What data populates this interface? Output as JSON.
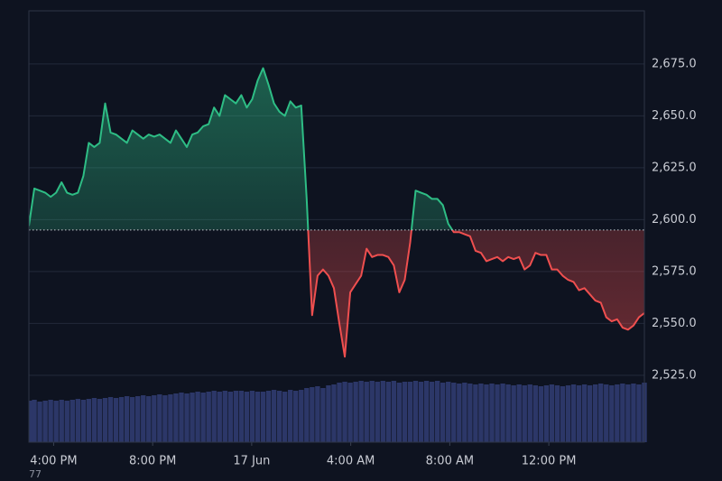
{
  "chart_data": {
    "type": "baseline",
    "annotation": "77",
    "baseline": 2595,
    "colors": {
      "up": "#2ebd85",
      "down": "#ef4f4f",
      "volume": "#2c3768",
      "grid": "#232a3a"
    },
    "xlim": [
      15,
      39.86
    ],
    "xticks": [
      {
        "value": 16,
        "label": "4:00 PM"
      },
      {
        "value": 20,
        "label": "8:00 PM"
      },
      {
        "value": 24,
        "label": "17 Jun"
      },
      {
        "value": 28,
        "label": "4:00 AM"
      },
      {
        "value": 32,
        "label": "8:00 AM"
      },
      {
        "value": 36,
        "label": "12:00 PM"
      }
    ],
    "ylim": [
      2492.8,
      2700.6
    ],
    "yticks": [
      {
        "value": 2525,
        "label": "2,525.0"
      },
      {
        "value": 2550,
        "label": "2,550.0"
      },
      {
        "value": 2575,
        "label": "2,575.0"
      },
      {
        "value": 2600,
        "label": "2,600.0"
      },
      {
        "value": 2625,
        "label": "2,625.0"
      },
      {
        "value": 2650,
        "label": "2,650.0"
      },
      {
        "value": 2675,
        "label": "2,675.0"
      }
    ],
    "grid": true,
    "x": [
      15,
      15.22,
      15.44,
      15.66,
      15.88,
      16.1,
      16.32,
      16.54,
      16.76,
      16.98,
      17.2,
      17.42,
      17.64,
      17.86,
      18.08,
      18.3,
      18.52,
      18.74,
      18.96,
      19.18,
      19.4,
      19.62,
      19.84,
      20.06,
      20.28,
      20.5,
      20.72,
      20.94,
      21.16,
      21.38,
      21.6,
      21.82,
      22.04,
      22.26,
      22.48,
      22.7,
      22.92,
      23.14,
      23.36,
      23.58,
      23.8,
      24.02,
      24.24,
      24.46,
      24.68,
      24.9,
      25.12,
      25.34,
      25.56,
      25.78,
      26,
      26.22,
      26.44,
      26.66,
      26.88,
      27.1,
      27.32,
      27.54,
      27.76,
      27.98,
      28.2,
      28.42,
      28.64,
      28.86,
      29.08,
      29.3,
      29.52,
      29.74,
      29.96,
      30.18,
      30.4,
      30.62,
      30.84,
      31.06,
      31.28,
      31.5,
      31.72,
      31.94,
      32.16,
      32.38,
      32.6,
      32.82,
      33.04,
      33.26,
      33.48,
      33.7,
      33.92,
      34.14,
      34.36,
      34.58,
      34.8,
      35.02,
      35.24,
      35.46,
      35.68,
      35.9,
      36.12,
      36.34,
      36.56,
      36.78,
      37,
      37.22,
      37.44,
      37.66,
      37.88,
      38.1,
      38.32,
      38.54,
      38.76,
      38.98,
      39.2,
      39.42,
      39.64,
      39.86
    ],
    "values": [
      2597,
      2615,
      2614,
      2613,
      2611,
      2613,
      2618,
      2613,
      2612,
      2613,
      2621,
      2637,
      2635,
      2637,
      2656,
      2642,
      2641,
      2639,
      2637,
      2643,
      2641,
      2639,
      2641,
      2640,
      2641,
      2639,
      2637,
      2643,
      2639,
      2635,
      2641,
      2642,
      2645,
      2646,
      2654,
      2650,
      2660,
      2658,
      2656,
      2660,
      2654,
      2658,
      2667,
      2673,
      2665,
      2656,
      2652,
      2650,
      2657,
      2654,
      2655,
      2610,
      2554,
      2573,
      2576,
      2573,
      2567,
      2550,
      2534,
      2565,
      2569,
      2573,
      2586,
      2582,
      2583,
      2583,
      2582,
      2578,
      2565,
      2571,
      2589,
      2614,
      2613,
      2612,
      2610,
      2610,
      2607,
      2598,
      2594,
      2594,
      2593,
      2592,
      2585,
      2584,
      2580,
      2581,
      2582,
      2580,
      2582,
      2581,
      2582,
      2576,
      2578,
      2584,
      2583,
      2583,
      2576,
      2576,
      2573,
      2571,
      2570,
      2566,
      2567,
      2564,
      2561,
      2560,
      2553,
      2551,
      2552,
      2548,
      2547,
      2549,
      2553,
      2555
    ],
    "volume": [
      46,
      47,
      45,
      46,
      47,
      46,
      47,
      46,
      47,
      48,
      47,
      48,
      49,
      48,
      49,
      50,
      49,
      50,
      51,
      50,
      51,
      52,
      51,
      52,
      53,
      52,
      53,
      54,
      55,
      54,
      55,
      56,
      55,
      56,
      57,
      56,
      57,
      56,
      57,
      57,
      56,
      57,
      56,
      56,
      57,
      58,
      57,
      56,
      58,
      57,
      58,
      60,
      61,
      62,
      60,
      63,
      64,
      66,
      67,
      66,
      67,
      68,
      67,
      68,
      67,
      68,
      67,
      68,
      66,
      67,
      67,
      68,
      67,
      68,
      67,
      68,
      66,
      67,
      66,
      65,
      66,
      65,
      64,
      65,
      64,
      65,
      64,
      65,
      64,
      63,
      64,
      63,
      64,
      63,
      62,
      63,
      64,
      63,
      62,
      63,
      64,
      63,
      64,
      63,
      64,
      65,
      64,
      63,
      64,
      65,
      64,
      65,
      64,
      66
    ]
  }
}
